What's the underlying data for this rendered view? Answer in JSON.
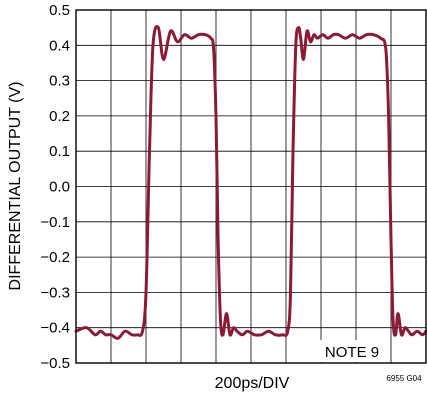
{
  "chart_data": {
    "type": "line",
    "title": "",
    "xlabel": "200ps/DIV",
    "ylabel": "DIFFERENTIAL OUTPUT (V)",
    "ylim": [
      -0.5,
      0.5
    ],
    "yticks": [
      "0.5",
      "0.4",
      "0.3",
      "0.2",
      "0.1",
      "0.0",
      "−0.1",
      "−0.2",
      "−0.3",
      "−0.4",
      "−0.5"
    ],
    "x_divisions": 10,
    "grid": true,
    "annotation": "NOTE 9",
    "figure_id": "6955 G04",
    "series": [
      {
        "color": "#8b1a35",
        "x": [
          0.0,
          0.3,
          0.55,
          0.7,
          0.85,
          1.0,
          1.2,
          1.4,
          1.6,
          1.75,
          1.9,
          2.0,
          2.1,
          2.2,
          2.35,
          2.5,
          2.7,
          2.9,
          3.1,
          3.3,
          3.5,
          3.7,
          3.85,
          3.93,
          4.0,
          4.06,
          4.13,
          4.2,
          4.3,
          4.4,
          4.5,
          4.6,
          4.75,
          4.9,
          5.1,
          5.3,
          5.5,
          5.7,
          5.9,
          6.05,
          6.13,
          6.2,
          6.28,
          6.36,
          6.42,
          6.5,
          6.6,
          6.7,
          6.8,
          6.9,
          7.05,
          7.2,
          7.35,
          7.5,
          7.7,
          7.9,
          8.1,
          8.3,
          8.5,
          8.7,
          8.85,
          8.93,
          9.0,
          9.06,
          9.13,
          9.2,
          9.3,
          9.4,
          9.5,
          9.6,
          9.75,
          9.9,
          10.0
        ],
        "y": [
          -0.41,
          -0.4,
          -0.42,
          -0.41,
          -0.42,
          -0.42,
          -0.43,
          -0.41,
          -0.42,
          -0.42,
          -0.41,
          -0.3,
          0.1,
          0.4,
          0.45,
          0.36,
          0.44,
          0.41,
          0.43,
          0.42,
          0.43,
          0.43,
          0.42,
          0.39,
          0.2,
          -0.15,
          -0.38,
          -0.42,
          -0.36,
          -0.42,
          -0.4,
          -0.41,
          -0.42,
          -0.41,
          -0.42,
          -0.42,
          -0.41,
          -0.42,
          -0.42,
          -0.41,
          -0.3,
          0.1,
          0.4,
          0.45,
          0.42,
          0.36,
          0.44,
          0.41,
          0.43,
          0.42,
          0.43,
          0.42,
          0.43,
          0.43,
          0.42,
          0.43,
          0.42,
          0.43,
          0.43,
          0.42,
          0.39,
          0.2,
          -0.15,
          -0.38,
          -0.42,
          -0.36,
          -0.42,
          -0.4,
          -0.41,
          -0.42,
          -0.41,
          -0.42,
          -0.41
        ]
      }
    ]
  }
}
